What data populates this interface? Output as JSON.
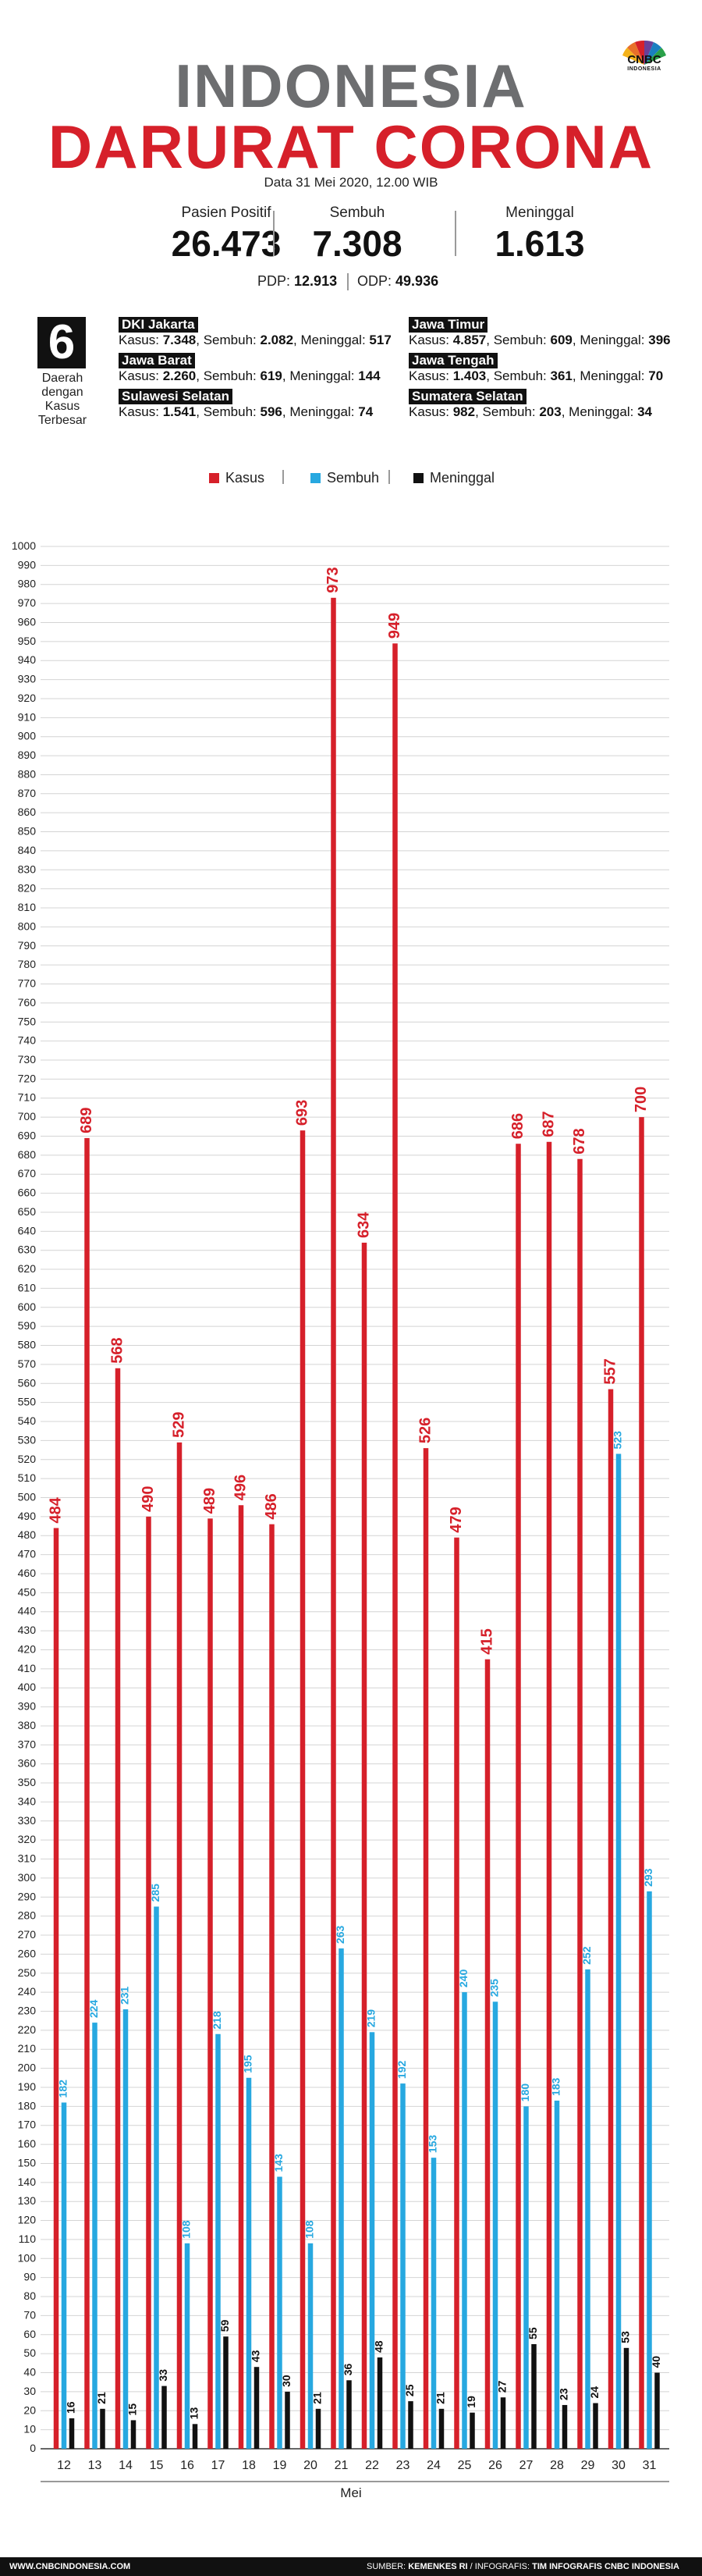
{
  "header": {
    "title_line1": "INDONESIA",
    "title_line2": "DARURAT CORONA",
    "date": "Data 31 Mei 2020, 12.00 WIB",
    "logo_text": "CNBC",
    "logo_sub": "INDONESIA"
  },
  "stats": [
    {
      "label": "Pasien Positif",
      "value": "26.473"
    },
    {
      "label": "Sembuh",
      "value": "7.308"
    },
    {
      "label": "Meninggal",
      "value": "1.613"
    }
  ],
  "pdp": {
    "pdp_label": "PDP:",
    "pdp_value": "12.913",
    "odp_label": "ODP:",
    "odp_value": "49.936"
  },
  "regions_block": {
    "number": "6",
    "caption": "Daerah dengan Kasus Terbesar",
    "regions": [
      {
        "name": "DKI Jakarta",
        "kasus_label": "Kasus:",
        "kasus": "7.348",
        "sembuh_label": "Sembuh:",
        "sembuh": "2.082",
        "meninggal_label": "Meninggal:",
        "meninggal": "517"
      },
      {
        "name": "Jawa Barat",
        "kasus_label": "Kasus:",
        "kasus": "2.260",
        "sembuh_label": "Sembuh:",
        "sembuh": "619",
        "meninggal_label": "Meninggal:",
        "meninggal": "144"
      },
      {
        "name": "Sulawesi Selatan",
        "kasus_label": "Kasus:",
        "kasus": "1.541",
        "sembuh_label": "Sembuh:",
        "sembuh": "596",
        "meninggal_label": "Meninggal:",
        "meninggal": "74"
      },
      {
        "name": "Jawa Timur",
        "kasus_label": "Kasus:",
        "kasus": "4.857",
        "sembuh_label": "Sembuh:",
        "sembuh": "609",
        "meninggal_label": "Meninggal:",
        "meninggal": "396"
      },
      {
        "name": "Jawa Tengah",
        "kasus_label": "Kasus:",
        "kasus": "1.403",
        "sembuh_label": "Sembuh:",
        "sembuh": "361",
        "meninggal_label": "Meninggal:",
        "meninggal": "70"
      },
      {
        "name": "Sumatera Selatan",
        "kasus_label": "Kasus:",
        "kasus": "982",
        "sembuh_label": "Sembuh:",
        "sembuh": "203",
        "meninggal_label": "Meninggal:",
        "meninggal": "34"
      }
    ]
  },
  "colors": {
    "kasus": "#d6202a",
    "sembuh": "#27a8e0",
    "meninggal": "#111111",
    "title_gray": "#6d6e70"
  },
  "chart_data": {
    "type": "bar",
    "xlabel": "Mei",
    "ylabel": "",
    "ylim": [
      0,
      1000
    ],
    "ytick_step": 10,
    "grid": true,
    "legend_position": "top-center",
    "categories": [
      "12",
      "13",
      "14",
      "15",
      "16",
      "17",
      "18",
      "19",
      "20",
      "21",
      "22",
      "23",
      "24",
      "25",
      "26",
      "27",
      "28",
      "29",
      "30",
      "31"
    ],
    "series": [
      {
        "name": "Kasus",
        "color": "#d6202a",
        "values": [
          484,
          689,
          568,
          490,
          529,
          489,
          496,
          486,
          693,
          973,
          634,
          949,
          526,
          479,
          415,
          686,
          687,
          678,
          557,
          700
        ]
      },
      {
        "name": "Sembuh",
        "color": "#27a8e0",
        "values": [
          182,
          224,
          231,
          285,
          108,
          218,
          195,
          143,
          108,
          263,
          219,
          192,
          153,
          240,
          235,
          180,
          183,
          252,
          523,
          293
        ]
      },
      {
        "name": "Meninggal",
        "color": "#111111",
        "values": [
          16,
          21,
          15,
          33,
          13,
          59,
          43,
          30,
          21,
          36,
          48,
          25,
          21,
          19,
          27,
          55,
          23,
          24,
          53,
          40
        ]
      }
    ]
  },
  "footer": {
    "left": "WWW.CNBCINDONESIA.COM",
    "source_label": "SUMBER:",
    "source": "KEMENKES RI",
    "infografis_label": "/ INFOGRAFIS:",
    "infografis": "TIM INFOGRAFIS CNBC INDONESIA"
  }
}
